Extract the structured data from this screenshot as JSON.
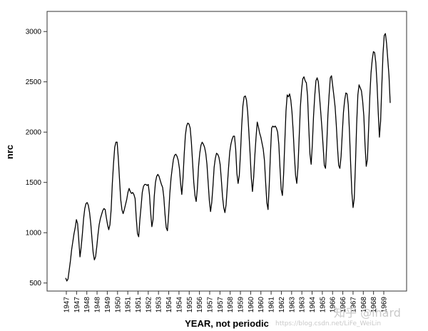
{
  "chart_data": {
    "type": "line",
    "xlabel": "YEAR, not periodic",
    "ylabel": "nrc",
    "ylim": [
      420,
      3200
    ],
    "y_ticks": [
      500,
      1000,
      1500,
      2000,
      2500,
      3000
    ],
    "x_tick_labels": [
      "1947",
      "1947",
      "1948",
      "1948",
      "1949",
      "1950",
      "1951",
      "1951",
      "1952",
      "1953",
      "1954",
      "1954",
      "1955",
      "1956",
      "1957",
      "1957",
      "1958",
      "1959",
      "1960",
      "1960",
      "1961",
      "1962",
      "1963",
      "1963",
      "1964",
      "1965",
      "1966",
      "1966",
      "1967",
      "1968",
      "1968",
      "1969"
    ],
    "grid": false,
    "series": [
      {
        "values": [
          550,
          520,
          540,
          630,
          720,
          830,
          910,
          990,
          1050,
          1130,
          1090,
          920,
          760,
          860,
          990,
          1140,
          1240,
          1290,
          1300,
          1270,
          1200,
          1090,
          940,
          800,
          730,
          760,
          860,
          980,
          1080,
          1140,
          1180,
          1220,
          1240,
          1230,
          1150,
          1080,
          1030,
          1080,
          1230,
          1490,
          1690,
          1850,
          1900,
          1900,
          1740,
          1530,
          1330,
          1230,
          1190,
          1230,
          1280,
          1330,
          1400,
          1440,
          1410,
          1390,
          1400,
          1380,
          1340,
          1140,
          990,
          960,
          1130,
          1260,
          1400,
          1460,
          1480,
          1480,
          1470,
          1480,
          1380,
          1200,
          1060,
          1130,
          1360,
          1500,
          1560,
          1580,
          1560,
          1520,
          1480,
          1450,
          1350,
          1180,
          1050,
          1020,
          1180,
          1390,
          1540,
          1640,
          1730,
          1770,
          1780,
          1760,
          1720,
          1640,
          1490,
          1380,
          1540,
          1780,
          1970,
          2060,
          2090,
          2080,
          2040,
          1900,
          1700,
          1500,
          1370,
          1310,
          1440,
          1660,
          1790,
          1870,
          1900,
          1880,
          1850,
          1790,
          1680,
          1500,
          1320,
          1210,
          1300,
          1460,
          1650,
          1740,
          1790,
          1780,
          1750,
          1680,
          1530,
          1360,
          1250,
          1200,
          1280,
          1460,
          1640,
          1800,
          1880,
          1930,
          1960,
          1960,
          1830,
          1590,
          1490,
          1570,
          1790,
          2060,
          2260,
          2350,
          2360,
          2320,
          2200,
          2000,
          1790,
          1550,
          1410,
          1550,
          1770,
          1950,
          2100,
          2050,
          1990,
          1950,
          1890,
          1830,
          1720,
          1500,
          1300,
          1230,
          1470,
          1780,
          2040,
          2060,
          2050,
          2060,
          2040,
          2000,
          1880,
          1640,
          1430,
          1370,
          1580,
          1900,
          2210,
          2370,
          2350,
          2380,
          2320,
          2200,
          2010,
          1770,
          1570,
          1490,
          1650,
          1950,
          2250,
          2420,
          2530,
          2550,
          2510,
          2490,
          2360,
          2050,
          1780,
          1680,
          1880,
          2160,
          2360,
          2510,
          2540,
          2500,
          2350,
          2200,
          2040,
          1860,
          1670,
          1640,
          1870,
          2170,
          2370,
          2540,
          2560,
          2460,
          2360,
          2250,
          2070,
          1850,
          1670,
          1640,
          1760,
          1990,
          2200,
          2320,
          2390,
          2380,
          2270,
          2000,
          1680,
          1400,
          1250,
          1340,
          1680,
          2080,
          2370,
          2470,
          2440,
          2410,
          2310,
          2160,
          1870,
          1660,
          1730,
          2040,
          2360,
          2590,
          2720,
          2800,
          2790,
          2690,
          2480,
          2200,
          1950,
          2110,
          2460,
          2780,
          2960,
          2980,
          2880,
          2720,
          2560,
          2290
        ]
      }
    ]
  },
  "watermark": {
    "brand": "知乎 @lhard",
    "url": "https://blog.csdn.net/LiFe_WeiLin"
  }
}
